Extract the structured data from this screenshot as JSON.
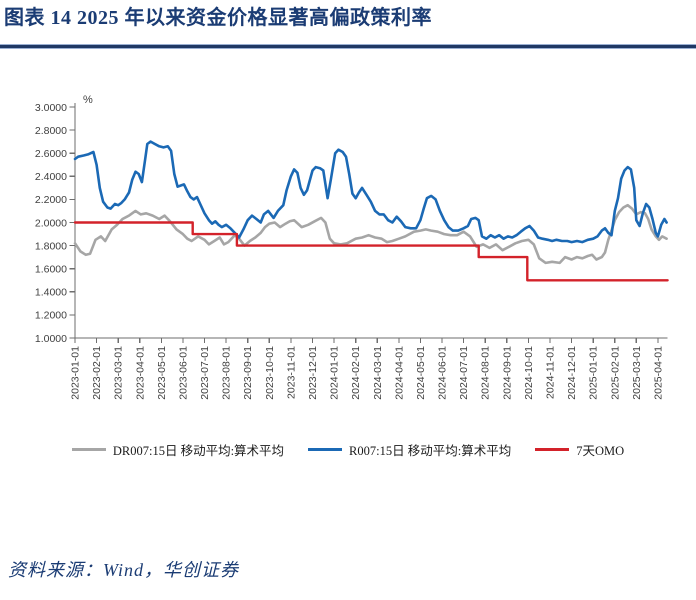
{
  "title": "图表 14  2025 年以来资金价格显著高偏政策利率",
  "source_note": "资料来源：Wind，华创证券",
  "colors": {
    "title_navy": "#1B3C74",
    "rule_navy": "#1F3864",
    "axis_line": "#6E6E6E",
    "tick_text": "#3F3F3F",
    "dr007_gray": "#A6A6A6",
    "r007_blue": "#1B69B5",
    "omo_red": "#D3222A",
    "background": "#FFFFFF"
  },
  "chart_data": {
    "type": "line",
    "unit_label": "%",
    "ylim": [
      1.0,
      3.0
    ],
    "ytick_step": 0.2,
    "ytick_labels": [
      "3.0000",
      "2.8000",
      "2.6000",
      "2.4000",
      "2.2000",
      "2.0000",
      "1.8000",
      "1.6000",
      "1.4000",
      "1.2000",
      "1.0000"
    ],
    "x_unit": "months since 2023-01-01",
    "xlim": [
      0,
      27.45
    ],
    "grid": "off",
    "legend_position": "bottom",
    "xtick_labels": [
      "2023-01-01",
      "2023-02-01",
      "2023-03-01",
      "2023-04-01",
      "2023-05-01",
      "2023-06-01",
      "2023-07-01",
      "2023-08-01",
      "2023-09-01",
      "2023-10-01",
      "2023-11-01",
      "2023-12-01",
      "2024-01-01",
      "2024-02-01",
      "2024-03-01",
      "2024-04-01",
      "2024-05-01",
      "2024-06-01",
      "2024-07-01",
      "2024-08-01",
      "2024-09-01",
      "2024-10-01",
      "2024-11-01",
      "2024-12-01",
      "2025-01-01",
      "2025-02-01",
      "2025-03-01",
      "2025-04-01"
    ],
    "series": [
      {
        "name": "DR007:15日 移动平均:算术平均",
        "color": "#A6A6A6",
        "width": 2.6,
        "points": [
          [
            0,
            1.82
          ],
          [
            0.25,
            1.75
          ],
          [
            0.5,
            1.72
          ],
          [
            0.7,
            1.73
          ],
          [
            0.95,
            1.85
          ],
          [
            1.2,
            1.88
          ],
          [
            1.4,
            1.84
          ],
          [
            1.7,
            1.94
          ],
          [
            1.95,
            1.98
          ],
          [
            2.2,
            2.03
          ],
          [
            2.5,
            2.06
          ],
          [
            2.8,
            2.1
          ],
          [
            3.05,
            2.07
          ],
          [
            3.3,
            2.08
          ],
          [
            3.6,
            2.06
          ],
          [
            3.9,
            2.03
          ],
          [
            4.15,
            2.06
          ],
          [
            4.4,
            2.01
          ],
          [
            4.7,
            1.94
          ],
          [
            5,
            1.9
          ],
          [
            5.2,
            1.86
          ],
          [
            5.4,
            1.84
          ],
          [
            5.7,
            1.88
          ],
          [
            6,
            1.85
          ],
          [
            6.2,
            1.81
          ],
          [
            6.45,
            1.84
          ],
          [
            6.7,
            1.87
          ],
          [
            6.9,
            1.81
          ],
          [
            7.1,
            1.83
          ],
          [
            7.4,
            1.89
          ],
          [
            7.6,
            1.86
          ],
          [
            7.85,
            1.8
          ],
          [
            8.1,
            1.84
          ],
          [
            8.35,
            1.87
          ],
          [
            8.6,
            1.91
          ],
          [
            8.8,
            1.96
          ],
          [
            9,
            1.99
          ],
          [
            9.25,
            2
          ],
          [
            9.5,
            1.96
          ],
          [
            9.75,
            1.99
          ],
          [
            9.95,
            2.01
          ],
          [
            10.15,
            2.02
          ],
          [
            10.5,
            1.96
          ],
          [
            10.8,
            1.98
          ],
          [
            11.1,
            2.01
          ],
          [
            11.4,
            2.04
          ],
          [
            11.6,
            2
          ],
          [
            11.8,
            1.86
          ],
          [
            12,
            1.82
          ],
          [
            12.3,
            1.81
          ],
          [
            12.6,
            1.82
          ],
          [
            13,
            1.86
          ],
          [
            13.3,
            1.87
          ],
          [
            13.6,
            1.89
          ],
          [
            13.9,
            1.87
          ],
          [
            14.2,
            1.86
          ],
          [
            14.45,
            1.83
          ],
          [
            14.7,
            1.84
          ],
          [
            15,
            1.86
          ],
          [
            15.3,
            1.88
          ],
          [
            15.7,
            1.92
          ],
          [
            16,
            1.93
          ],
          [
            16.25,
            1.94
          ],
          [
            16.5,
            1.93
          ],
          [
            16.8,
            1.92
          ],
          [
            17.1,
            1.9
          ],
          [
            17.4,
            1.89
          ],
          [
            17.7,
            1.89
          ],
          [
            18,
            1.92
          ],
          [
            18.3,
            1.88
          ],
          [
            18.6,
            1.79
          ],
          [
            18.9,
            1.81
          ],
          [
            19.2,
            1.78
          ],
          [
            19.5,
            1.81
          ],
          [
            19.8,
            1.76
          ],
          [
            20.1,
            1.79
          ],
          [
            20.4,
            1.82
          ],
          [
            20.7,
            1.84
          ],
          [
            21,
            1.85
          ],
          [
            21.25,
            1.81
          ],
          [
            21.5,
            1.69
          ],
          [
            21.8,
            1.65
          ],
          [
            22.1,
            1.66
          ],
          [
            22.45,
            1.65
          ],
          [
            22.7,
            1.7
          ],
          [
            23,
            1.68
          ],
          [
            23.25,
            1.7
          ],
          [
            23.5,
            1.69
          ],
          [
            23.75,
            1.71
          ],
          [
            23.95,
            1.72
          ],
          [
            24.15,
            1.68
          ],
          [
            24.4,
            1.7
          ],
          [
            24.55,
            1.74
          ],
          [
            24.7,
            1.85
          ],
          [
            24.85,
            1.93
          ],
          [
            25,
            2.02
          ],
          [
            25.2,
            2.09
          ],
          [
            25.4,
            2.13
          ],
          [
            25.6,
            2.15
          ],
          [
            25.8,
            2.12
          ],
          [
            26,
            2.07
          ],
          [
            26.2,
            2.09
          ],
          [
            26.4,
            2.08
          ],
          [
            26.55,
            2.03
          ],
          [
            26.7,
            1.94
          ],
          [
            26.9,
            1.88
          ],
          [
            27.05,
            1.85
          ],
          [
            27.2,
            1.88
          ],
          [
            27.4,
            1.86
          ]
        ]
      },
      {
        "name": "R007:15日 移动平均:算术平均",
        "color": "#1B69B5",
        "width": 2.6,
        "points": [
          [
            0,
            2.55
          ],
          [
            0.15,
            2.57
          ],
          [
            0.4,
            2.58
          ],
          [
            0.6,
            2.59
          ],
          [
            0.85,
            2.61
          ],
          [
            1,
            2.5
          ],
          [
            1.15,
            2.3
          ],
          [
            1.3,
            2.18
          ],
          [
            1.5,
            2.13
          ],
          [
            1.65,
            2.12
          ],
          [
            1.85,
            2.16
          ],
          [
            2,
            2.15
          ],
          [
            2.15,
            2.17
          ],
          [
            2.3,
            2.2
          ],
          [
            2.5,
            2.26
          ],
          [
            2.65,
            2.37
          ],
          [
            2.8,
            2.44
          ],
          [
            2.95,
            2.42
          ],
          [
            3.1,
            2.35
          ],
          [
            3.25,
            2.55
          ],
          [
            3.35,
            2.68
          ],
          [
            3.5,
            2.7
          ],
          [
            3.7,
            2.68
          ],
          [
            3.9,
            2.66
          ],
          [
            4.1,
            2.65
          ],
          [
            4.3,
            2.66
          ],
          [
            4.45,
            2.62
          ],
          [
            4.6,
            2.42
          ],
          [
            4.75,
            2.31
          ],
          [
            4.9,
            2.32
          ],
          [
            5.05,
            2.33
          ],
          [
            5.2,
            2.27
          ],
          [
            5.35,
            2.22
          ],
          [
            5.5,
            2.2
          ],
          [
            5.65,
            2.22
          ],
          [
            5.8,
            2.16
          ],
          [
            6,
            2.08
          ],
          [
            6.2,
            2.02
          ],
          [
            6.35,
            1.99
          ],
          [
            6.5,
            2.01
          ],
          [
            6.65,
            1.98
          ],
          [
            6.8,
            1.96
          ],
          [
            7,
            1.98
          ],
          [
            7.2,
            1.95
          ],
          [
            7.4,
            1.91
          ],
          [
            7.6,
            1.87
          ],
          [
            7.8,
            1.94
          ],
          [
            8,
            2.02
          ],
          [
            8.2,
            2.06
          ],
          [
            8.4,
            2.03
          ],
          [
            8.6,
            2
          ],
          [
            8.75,
            2.07
          ],
          [
            8.95,
            2.1
          ],
          [
            9.2,
            2.04
          ],
          [
            9.4,
            2.1
          ],
          [
            9.65,
            2.15
          ],
          [
            9.8,
            2.28
          ],
          [
            10,
            2.4
          ],
          [
            10.15,
            2.46
          ],
          [
            10.3,
            2.43
          ],
          [
            10.45,
            2.3
          ],
          [
            10.6,
            2.24
          ],
          [
            10.75,
            2.28
          ],
          [
            11,
            2.45
          ],
          [
            11.15,
            2.48
          ],
          [
            11.35,
            2.47
          ],
          [
            11.5,
            2.45
          ],
          [
            11.7,
            2.21
          ],
          [
            11.85,
            2.37
          ],
          [
            12.05,
            2.6
          ],
          [
            12.2,
            2.63
          ],
          [
            12.4,
            2.61
          ],
          [
            12.55,
            2.57
          ],
          [
            12.7,
            2.42
          ],
          [
            12.85,
            2.25
          ],
          [
            13,
            2.21
          ],
          [
            13.15,
            2.26
          ],
          [
            13.3,
            2.3
          ],
          [
            13.5,
            2.24
          ],
          [
            13.7,
            2.18
          ],
          [
            13.9,
            2.1
          ],
          [
            14.1,
            2.07
          ],
          [
            14.3,
            2.07
          ],
          [
            14.5,
            2.02
          ],
          [
            14.7,
            2
          ],
          [
            14.9,
            2.05
          ],
          [
            15.1,
            2.01
          ],
          [
            15.3,
            1.96
          ],
          [
            15.55,
            1.95
          ],
          [
            15.8,
            1.95
          ],
          [
            16,
            2.02
          ],
          [
            16.15,
            2.12
          ],
          [
            16.3,
            2.21
          ],
          [
            16.5,
            2.23
          ],
          [
            16.7,
            2.2
          ],
          [
            16.9,
            2.1
          ],
          [
            17.1,
            2.02
          ],
          [
            17.3,
            1.96
          ],
          [
            17.5,
            1.93
          ],
          [
            17.75,
            1.93
          ],
          [
            18,
            1.95
          ],
          [
            18.2,
            1.97
          ],
          [
            18.35,
            2.03
          ],
          [
            18.55,
            2.04
          ],
          [
            18.7,
            2.02
          ],
          [
            18.85,
            1.88
          ],
          [
            19.05,
            1.86
          ],
          [
            19.25,
            1.89
          ],
          [
            19.45,
            1.87
          ],
          [
            19.65,
            1.89
          ],
          [
            19.85,
            1.86
          ],
          [
            20.05,
            1.88
          ],
          [
            20.25,
            1.87
          ],
          [
            20.45,
            1.89
          ],
          [
            20.65,
            1.92
          ],
          [
            20.85,
            1.95
          ],
          [
            21.05,
            1.97
          ],
          [
            21.25,
            1.93
          ],
          [
            21.45,
            1.87
          ],
          [
            21.65,
            1.86
          ],
          [
            21.9,
            1.85
          ],
          [
            22.1,
            1.84
          ],
          [
            22.3,
            1.85
          ],
          [
            22.55,
            1.84
          ],
          [
            22.8,
            1.84
          ],
          [
            23,
            1.83
          ],
          [
            23.25,
            1.84
          ],
          [
            23.5,
            1.83
          ],
          [
            23.75,
            1.85
          ],
          [
            24,
            1.86
          ],
          [
            24.2,
            1.88
          ],
          [
            24.4,
            1.93
          ],
          [
            24.55,
            1.95
          ],
          [
            24.7,
            1.91
          ],
          [
            24.85,
            1.89
          ],
          [
            25,
            2.1
          ],
          [
            25.15,
            2.21
          ],
          [
            25.3,
            2.38
          ],
          [
            25.45,
            2.45
          ],
          [
            25.6,
            2.48
          ],
          [
            25.75,
            2.46
          ],
          [
            25.9,
            2.3
          ],
          [
            26,
            2.02
          ],
          [
            26.15,
            1.97
          ],
          [
            26.3,
            2.08
          ],
          [
            26.45,
            2.16
          ],
          [
            26.6,
            2.13
          ],
          [
            26.75,
            2.03
          ],
          [
            26.9,
            1.91
          ],
          [
            27,
            1.88
          ],
          [
            27.15,
            1.98
          ],
          [
            27.3,
            2.03
          ],
          [
            27.4,
            2
          ]
        ]
      },
      {
        "name": "7天OMO",
        "color": "#D3222A",
        "width": 2.4,
        "points": [
          [
            0,
            2.0
          ],
          [
            5.45,
            2.0
          ],
          [
            5.45,
            1.9
          ],
          [
            7.5,
            1.9
          ],
          [
            7.5,
            1.8
          ],
          [
            18.7,
            1.8
          ],
          [
            18.7,
            1.7
          ],
          [
            20.95,
            1.7
          ],
          [
            20.95,
            1.5
          ],
          [
            27.45,
            1.5
          ]
        ]
      }
    ]
  }
}
